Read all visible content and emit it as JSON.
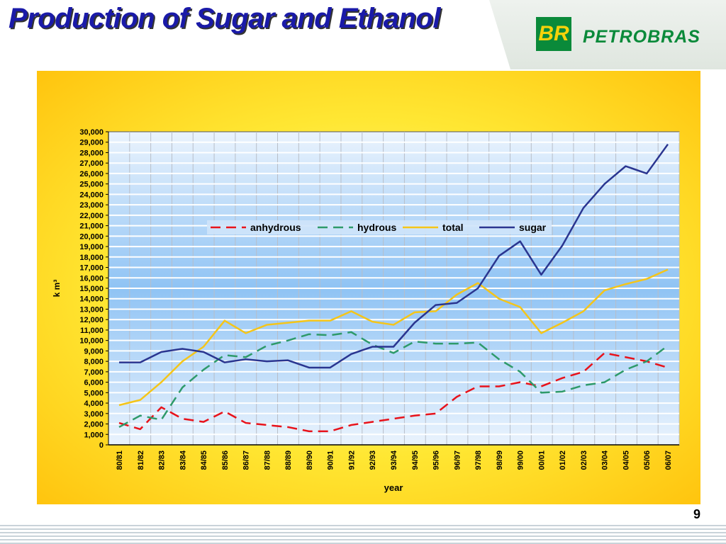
{
  "slide": {
    "title": "Production of Sugar and Ethanol",
    "page_number": "9",
    "logo": {
      "mark": "BR",
      "name": "PETROBRAS",
      "color": "#0a8a3a"
    }
  },
  "chart_data": {
    "type": "line",
    "title": "",
    "xlabel": "year",
    "ylabel": "k m³",
    "ylim": [
      0,
      30000
    ],
    "ytick_step": 1000,
    "grid": true,
    "legend": "top-center",
    "categories": [
      "80/81",
      "81/82",
      "82/83",
      "83/84",
      "84/85",
      "85/86",
      "86/87",
      "87/88",
      "88/89",
      "89/90",
      "90/91",
      "91/92",
      "92/93",
      "93/94",
      "94/95",
      "95/96",
      "96/97",
      "97/98",
      "98/99",
      "99/00",
      "00/01",
      "01/02",
      "02/03",
      "03/04",
      "04/05",
      "05/06",
      "06/07"
    ],
    "series": [
      {
        "name": "anhydrous",
        "color": "#e8121a",
        "dash": true,
        "values": [
          2100,
          1500,
          3600,
          2500,
          2200,
          3200,
          2100,
          1900,
          1700,
          1300,
          1300,
          1900,
          2200,
          2500,
          2800,
          3000,
          4600,
          5600,
          5600,
          6000,
          5600,
          6400,
          7000,
          8800,
          8400,
          8000,
          7400
        ]
      },
      {
        "name": "hydrous",
        "color": "#2e9a6a",
        "dash": true,
        "values": [
          1700,
          2800,
          2400,
          5500,
          7200,
          8600,
          8400,
          9500,
          10000,
          10600,
          10500,
          10800,
          9600,
          8800,
          9900,
          9700,
          9700,
          9800,
          8200,
          7000,
          5000,
          5100,
          5700,
          6000,
          7200,
          8000,
          9500
        ]
      },
      {
        "name": "total",
        "color": "#f5c518",
        "dash": false,
        "values": [
          3800,
          4300,
          6000,
          8000,
          9400,
          11900,
          10700,
          11500,
          11700,
          11900,
          11900,
          12800,
          11800,
          11500,
          12700,
          12800,
          14400,
          15500,
          14000,
          13200,
          10700,
          11700,
          12800,
          14800,
          15400,
          15900,
          16800
        ]
      },
      {
        "name": "sugar",
        "color": "#2a3590",
        "dash": false,
        "values": [
          7900,
          7900,
          8900,
          9200,
          8900,
          7900,
          8200,
          8000,
          8100,
          7400,
          7400,
          8700,
          9400,
          9400,
          11700,
          13400,
          13600,
          15000,
          18100,
          19500,
          16300,
          19100,
          22700,
          25000,
          26700,
          26000,
          28800
        ]
      }
    ]
  }
}
